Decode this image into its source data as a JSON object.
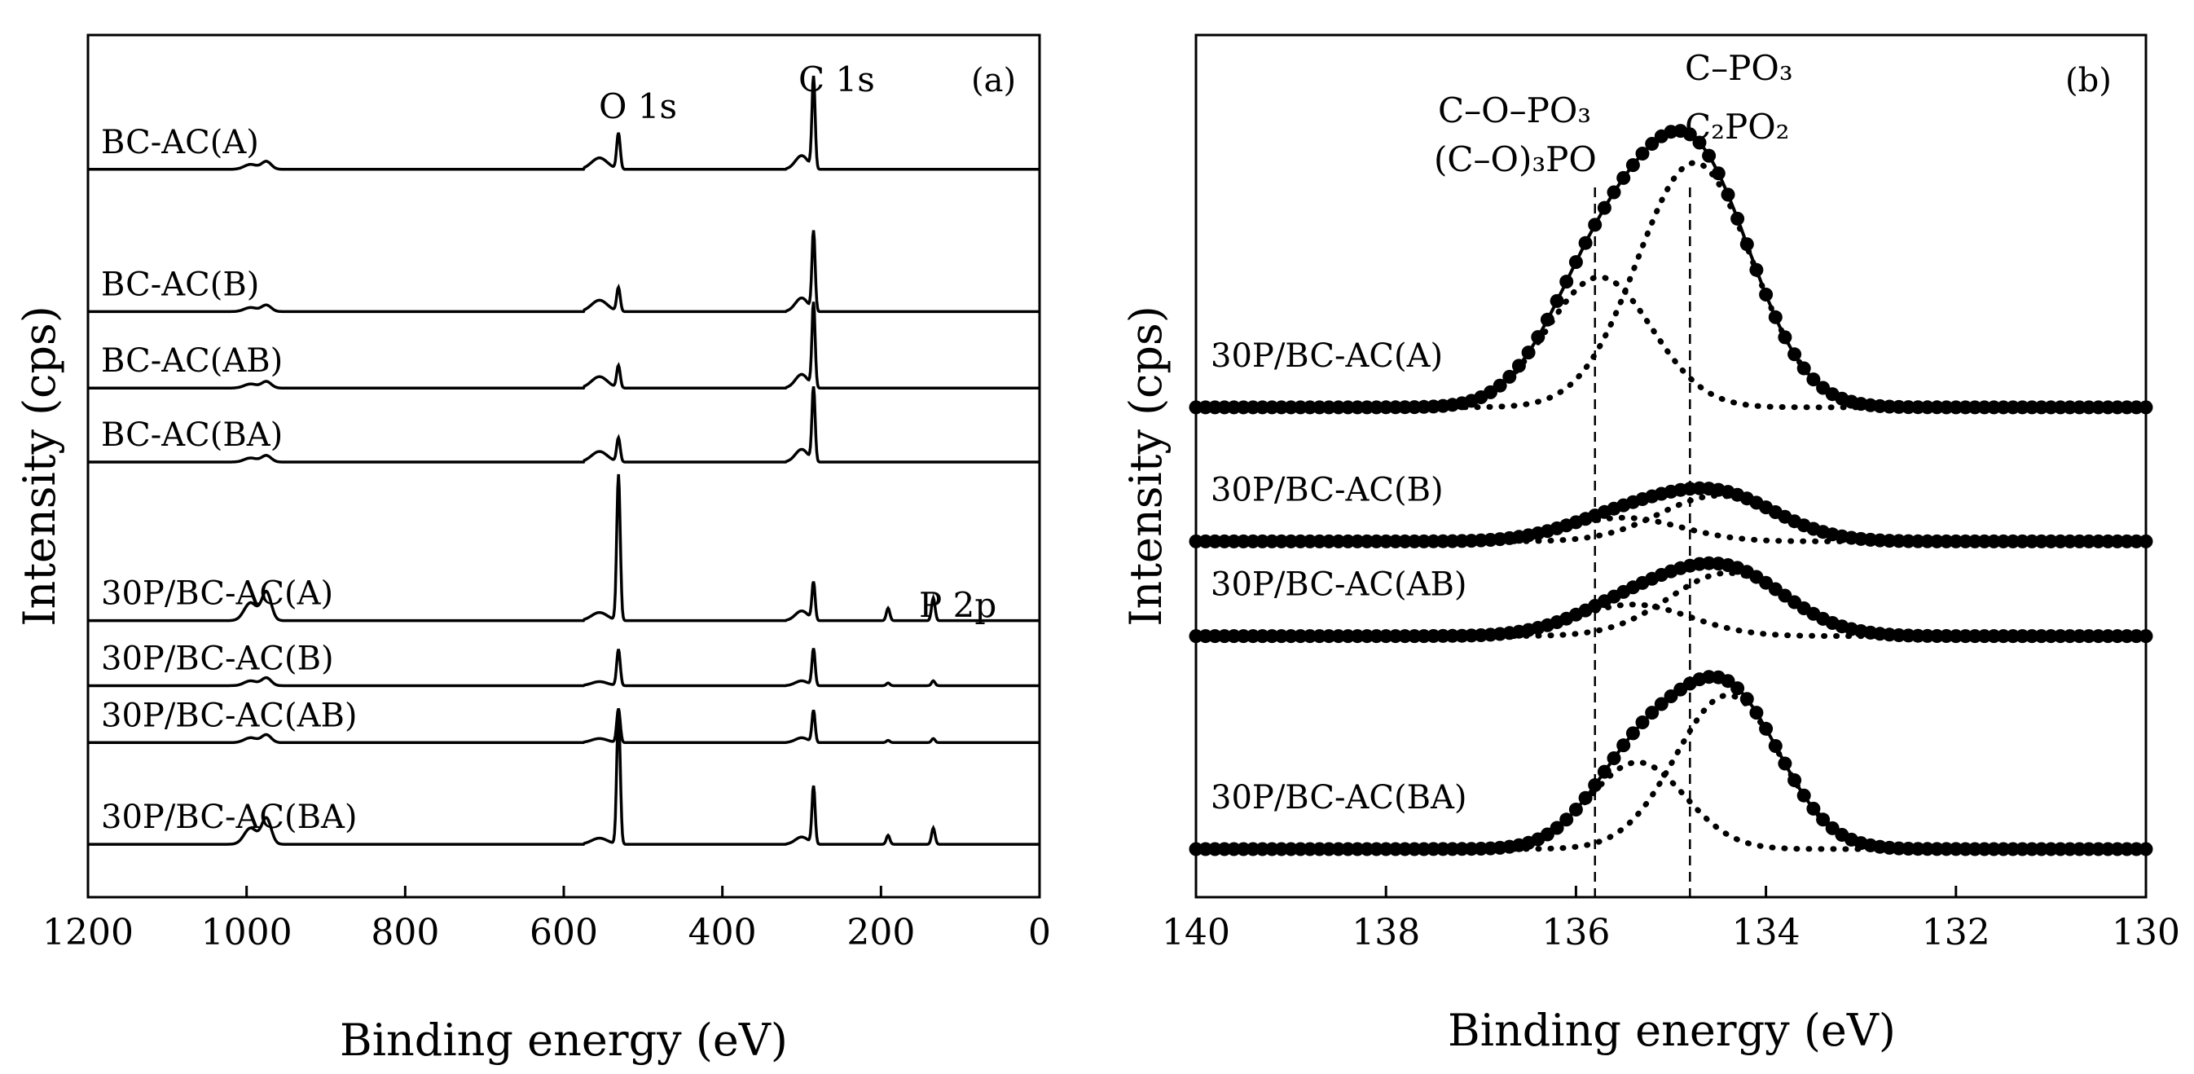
{
  "chart_data": [
    {
      "panel": "(a)",
      "type": "line",
      "title": "",
      "xlabel": "Binding energy (eV)",
      "ylabel": "Intensity (cps)",
      "xlim": [
        1200,
        0
      ],
      "x_reversed": true,
      "x_ticks": [
        1200,
        1000,
        800,
        600,
        400,
        200,
        0
      ],
      "y_ticks_shown": false,
      "annotations": [
        {
          "text": "O 1s",
          "x": 531
        },
        {
          "text": "C 1s",
          "x": 285
        },
        {
          "text": "P 2p",
          "x": 134
        }
      ],
      "peak_positions_eV": [
        531,
        285,
        191,
        134
      ],
      "series": [
        {
          "name": "BC-AC(A)",
          "baseline": 0.875,
          "o1s": 0.045,
          "c1s": 0.115,
          "step": 0.028,
          "p2p": 0.0,
          "shoulder": 0.006
        },
        {
          "name": "BC-AC(B)",
          "baseline": 0.7,
          "o1s": 0.03,
          "c1s": 0.1,
          "step": 0.028,
          "p2p": 0.0,
          "shoulder": 0.005
        },
        {
          "name": "BC-AC(AB)",
          "baseline": 0.606,
          "o1s": 0.028,
          "c1s": 0.106,
          "step": 0.028,
          "p2p": 0.0,
          "shoulder": 0.005
        },
        {
          "name": "BC-AC(BA)",
          "baseline": 0.515,
          "o1s": 0.03,
          "c1s": 0.093,
          "step": 0.026,
          "p2p": 0.0,
          "shoulder": 0.005
        },
        {
          "name": "30P/BC-AC(A)",
          "baseline": 0.32,
          "o1s": 0.18,
          "c1s": 0.048,
          "step": 0.02,
          "p2p": 0.028,
          "shoulder": 0.022
        },
        {
          "name": "30P/BC-AC(B)",
          "baseline": 0.24,
          "o1s": 0.045,
          "c1s": 0.046,
          "step": 0.01,
          "p2p": 0.006,
          "shoulder": 0.006
        },
        {
          "name": "30P/BC-AC(AB)",
          "baseline": 0.17,
          "o1s": 0.042,
          "c1s": 0.04,
          "step": 0.01,
          "p2p": 0.005,
          "shoulder": 0.006
        },
        {
          "name": "30P/BC-AC(BA)",
          "baseline": 0.045,
          "o1s": 0.165,
          "c1s": 0.072,
          "step": 0.015,
          "p2p": 0.02,
          "shoulder": 0.02
        }
      ]
    },
    {
      "panel": "(b)",
      "type": "line",
      "title": "",
      "xlabel": "Binding energy (eV)",
      "ylabel": "Intensity (cps)",
      "xlim": [
        140,
        130
      ],
      "x_reversed": true,
      "x_ticks": [
        140,
        138,
        136,
        134,
        132,
        130
      ],
      "y_ticks_shown": false,
      "reference_lines_eV": [
        135.8,
        134.8
      ],
      "annotations": [
        {
          "text": "C–O–PO₃",
          "x": 135.8
        },
        {
          "text": "(C–O)₃PO",
          "x": 135.8
        },
        {
          "text": "C–PO₃",
          "x": 134.8
        },
        {
          "text": "C₂PO₂",
          "x": 134.8
        }
      ],
      "series": [
        {
          "name": "30P/BC-AC(A)",
          "baseline": 0.59,
          "peak_total_center": 135.05,
          "components": [
            {
              "center": 135.75,
              "height": 0.165,
              "sigma": 0.55
            },
            {
              "center": 134.75,
              "height": 0.31,
              "sigma": 0.6
            }
          ]
        },
        {
          "name": "30P/BC-AC(B)",
          "baseline": 0.42,
          "peak_total_center": 134.6,
          "components": [
            {
              "center": 135.5,
              "height": 0.03,
              "sigma": 0.6
            },
            {
              "center": 134.5,
              "height": 0.058,
              "sigma": 0.62
            }
          ]
        },
        {
          "name": "30P/BC-AC(AB)",
          "baseline": 0.3,
          "peak_total_center": 134.5,
          "components": [
            {
              "center": 135.4,
              "height": 0.04,
              "sigma": 0.6
            },
            {
              "center": 134.4,
              "height": 0.08,
              "sigma": 0.62
            }
          ]
        },
        {
          "name": "30P/BC-AC(BA)",
          "baseline": 0.03,
          "peak_total_center": 134.6,
          "components": [
            {
              "center": 135.35,
              "height": 0.11,
              "sigma": 0.5
            },
            {
              "center": 134.4,
              "height": 0.195,
              "sigma": 0.55
            }
          ]
        }
      ]
    }
  ]
}
